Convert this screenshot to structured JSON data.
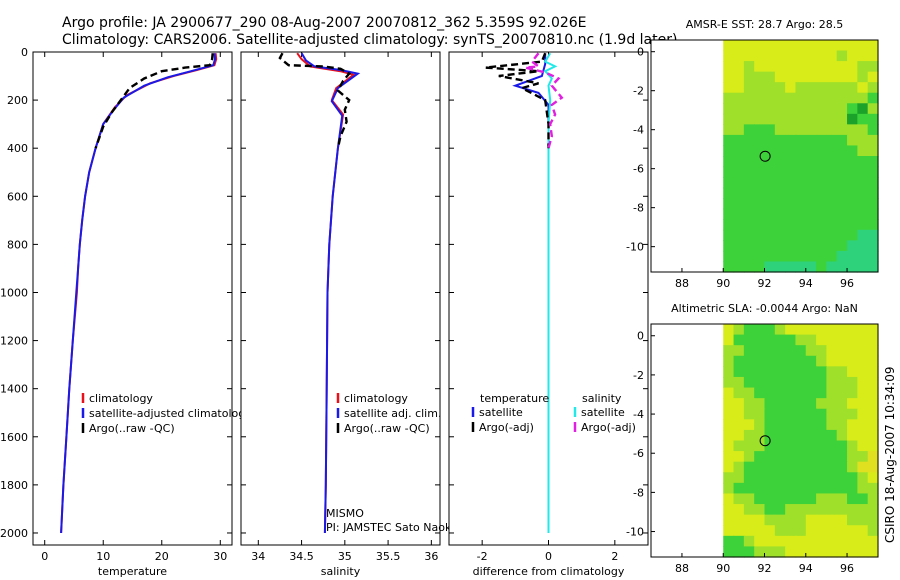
{
  "title_line1": "Argo profile: JA 2900677_290 08-Aug-2007 20070812_362 5.359S 92.026E",
  "title_line2": "Climatology: CARS2006. Satellite-adjusted climatology: synTS_20070810.nc (1.9d later)",
  "side_label": "CSIRO 18-Aug-2007 10:34:09",
  "colors": {
    "red": "#e8101a",
    "blue": "#1a1ae8",
    "black": "#000000",
    "cyan": "#22e8e8",
    "magenta": "#e020e0"
  },
  "chart_data": [
    {
      "id": "temperature",
      "type": "line",
      "xlabel": "temperature",
      "xlim": [
        -2,
        32
      ],
      "ylim": [
        0,
        2050
      ],
      "xticks": [
        0,
        10,
        20,
        30
      ],
      "yticks": [
        0,
        200,
        400,
        600,
        800,
        1000,
        1200,
        1400,
        1600,
        1800,
        2000
      ],
      "legend": [
        "climatology",
        "satellite-adjusted climatolog",
        "Argo(..raw -QC)"
      ],
      "series": [
        {
          "name": "climatology",
          "color": "red",
          "dash": false,
          "points": [
            [
              29.2,
              5
            ],
            [
              29.3,
              30
            ],
            [
              29.0,
              55
            ],
            [
              26,
              75
            ],
            [
              22,
              100
            ],
            [
              18,
              130
            ],
            [
              14,
              180
            ],
            [
              12,
              230
            ],
            [
              10,
              300
            ],
            [
              8.7,
              400
            ],
            [
              7.6,
              500
            ],
            [
              6.9,
              600
            ],
            [
              6.4,
              700
            ],
            [
              6.0,
              800
            ],
            [
              5.7,
              900
            ],
            [
              5.5,
              1000
            ],
            [
              4.8,
              1200
            ],
            [
              4.2,
              1400
            ],
            [
              3.7,
              1600
            ],
            [
              3.2,
              1800
            ],
            [
              2.8,
              2000
            ]
          ]
        },
        {
          "name": "satellite-adjusted climatology",
          "color": "blue",
          "dash": false,
          "points": [
            [
              29.0,
              5
            ],
            [
              29.1,
              30
            ],
            [
              28.8,
              55
            ],
            [
              25,
              80
            ],
            [
              21,
              105
            ],
            [
              17,
              140
            ],
            [
              13.5,
              190
            ],
            [
              11.8,
              240
            ],
            [
              10,
              300
            ],
            [
              8.7,
              400
            ],
            [
              7.6,
              500
            ],
            [
              6.9,
              600
            ],
            [
              6.4,
              700
            ],
            [
              6.0,
              800
            ],
            [
              5.7,
              900
            ],
            [
              5.4,
              1000
            ],
            [
              4.8,
              1200
            ],
            [
              4.2,
              1400
            ],
            [
              3.7,
              1600
            ],
            [
              3.2,
              1800
            ],
            [
              2.8,
              2000
            ]
          ]
        },
        {
          "name": "Argo(..raw -QC)",
          "color": "black",
          "dash": true,
          "points": [
            [
              28.7,
              5
            ],
            [
              28.6,
              30
            ],
            [
              28.2,
              55
            ],
            [
              24,
              65
            ],
            [
              20,
              80
            ],
            [
              17,
              110
            ],
            [
              14.5,
              150
            ],
            [
              13,
              200
            ],
            [
              11.5,
              250
            ],
            [
              10,
              310
            ],
            [
              8.7,
              400
            ]
          ]
        }
      ]
    },
    {
      "id": "salinity",
      "type": "line",
      "xlabel": "salinity",
      "xlim": [
        33.8,
        36.1
      ],
      "ylim": [
        0,
        2050
      ],
      "xticks": [
        34,
        34.5,
        35,
        35.5,
        36
      ],
      "legend": [
        "climatology",
        "satellite adj. clim.",
        "Argo(..raw -QC)"
      ],
      "annotation": [
        "MISMO",
        "PI: JAMSTEC Sato Naoki"
      ],
      "series": [
        {
          "name": "climatology",
          "color": "red",
          "dash": false,
          "points": [
            [
              34.45,
              5
            ],
            [
              34.5,
              30
            ],
            [
              34.6,
              60
            ],
            [
              34.95,
              80
            ],
            [
              35.1,
              95
            ],
            [
              34.9,
              150
            ],
            [
              34.85,
              200
            ],
            [
              34.98,
              260
            ],
            [
              34.92,
              400
            ],
            [
              34.86,
              600
            ],
            [
              34.82,
              800
            ],
            [
              34.8,
              1000
            ],
            [
              34.79,
              1400
            ],
            [
              34.78,
              1800
            ],
            [
              34.77,
              2000
            ]
          ]
        },
        {
          "name": "satellite adj. clim.",
          "color": "blue",
          "dash": false,
          "points": [
            [
              34.5,
              5
            ],
            [
              34.55,
              35
            ],
            [
              34.65,
              60
            ],
            [
              34.95,
              75
            ],
            [
              35.15,
              90
            ],
            [
              34.92,
              150
            ],
            [
              34.85,
              205
            ],
            [
              34.97,
              265
            ],
            [
              34.92,
              400
            ],
            [
              34.86,
              600
            ],
            [
              34.82,
              800
            ],
            [
              34.8,
              1000
            ],
            [
              34.79,
              1400
            ],
            [
              34.78,
              1800
            ],
            [
              34.77,
              2000
            ]
          ]
        },
        {
          "name": "Argo(..raw -QC)",
          "color": "black",
          "dash": true,
          "points": [
            [
              34.28,
              5
            ],
            [
              34.25,
              25
            ],
            [
              34.35,
              55
            ],
            [
              34.75,
              60
            ],
            [
              34.95,
              70
            ],
            [
              35.05,
              90
            ],
            [
              34.98,
              120
            ],
            [
              34.92,
              160
            ],
            [
              35.05,
              200
            ],
            [
              35.0,
              240
            ],
            [
              35.02,
              290
            ],
            [
              34.95,
              350
            ],
            [
              34.92,
              400
            ]
          ]
        }
      ]
    },
    {
      "id": "difference",
      "type": "line",
      "xlabel": "difference from climatology",
      "xlim": [
        -3,
        3
      ],
      "ylim": [
        0,
        2050
      ],
      "xticks": [
        -2,
        0,
        2
      ],
      "legend_headers": [
        "temperature",
        "salinity"
      ],
      "legend": [
        "satellite",
        "Argo(-adj)",
        "satellite",
        "Argo(-adj)"
      ],
      "series": [
        {
          "name": "temperature satellite",
          "color": "blue",
          "dash": false,
          "points": [
            [
              -0.1,
              5
            ],
            [
              -0.1,
              50
            ],
            [
              -0.2,
              100
            ],
            [
              -1.0,
              140
            ],
            [
              -0.3,
              170
            ],
            [
              0.0,
              220
            ],
            [
              0.0,
              300
            ],
            [
              0.0,
              400
            ],
            [
              0.0,
              500
            ]
          ]
        },
        {
          "name": "salinity satellite",
          "color": "cyan",
          "dash": false,
          "points": [
            [
              0.05,
              5
            ],
            [
              -0.1,
              40
            ],
            [
              0.2,
              60
            ],
            [
              -0.1,
              80
            ],
            [
              0.1,
              110
            ],
            [
              0.0,
              140
            ],
            [
              0.05,
              200
            ],
            [
              0.0,
              300
            ],
            [
              0.0,
              500
            ],
            [
              0.0,
              1000
            ],
            [
              0.0,
              1500
            ],
            [
              0.0,
              2000
            ]
          ]
        },
        {
          "name": "temperature Argo(-adj)",
          "color": "black",
          "dash": true,
          "points": [
            [
              -0.1,
              5
            ],
            [
              -0.2,
              40
            ],
            [
              -1.9,
              65
            ],
            [
              -0.3,
              80
            ],
            [
              -1.5,
              100
            ],
            [
              -0.3,
              130
            ],
            [
              -0.8,
              150
            ],
            [
              -0.1,
              200
            ],
            [
              0.0,
              300
            ],
            [
              0.0,
              400
            ]
          ]
        },
        {
          "name": "salinity Argo(-adj)",
          "color": "magenta",
          "dash": true,
          "points": [
            [
              -0.3,
              5
            ],
            [
              -0.5,
              40
            ],
            [
              -0.3,
              60
            ],
            [
              -0.7,
              65
            ],
            [
              -0.1,
              85
            ],
            [
              0.3,
              110
            ],
            [
              0.1,
              140
            ],
            [
              0.4,
              190
            ],
            [
              0.1,
              220
            ],
            [
              0.2,
              260
            ],
            [
              0.05,
              300
            ],
            [
              0.1,
              350
            ],
            [
              0.0,
              400
            ]
          ]
        }
      ]
    },
    {
      "id": "sst_map",
      "type": "heatmap",
      "title": "AMSR-E SST: 28.7 Argo: 28.5",
      "xlim": [
        86.5,
        97.5
      ],
      "ylim": [
        -11.3,
        0.6
      ],
      "xticks": [
        88,
        90,
        92,
        94,
        96
      ],
      "yticks": [
        0,
        -2,
        -4,
        -6,
        -8,
        -10
      ],
      "data_xrange": [
        90,
        97.5
      ],
      "marker": [
        92.03,
        -5.36
      ],
      "grid": [
        "yyyyyyyyyyyyyyy",
        "yyyyyyyyyyylyyy",
        "yylyyyyyyyyyyll",
        "yylllyyyyyyyyly",
        "yyllllyllllllyl",
        "llllllllllllllg",
        "llllllllllllgdl",
        "lllllllllllldgg",
        "llggglllllllllg",
        "gggggggggggglll",
        "gggggggggggggll",
        "ggggggggggggggg",
        "ggggggggggggggg",
        "ggggggggggggggg",
        "ggggggggggggggg",
        "ggggggggggggggg",
        "ggggggggggggggg",
        "ggggggggggggggg",
        "gggggggggggggtt",
        "ggggggggggggttt",
        "gggggggggggtttt",
        "ggggtttttgttttt"
      ]
    },
    {
      "id": "sla_map",
      "type": "heatmap",
      "title": "Altimetric SLA: -0.0044 Argo: NaN",
      "xlim": [
        86.5,
        97.5
      ],
      "ylim": [
        -11.3,
        0.6
      ],
      "xticks": [
        88,
        90,
        92,
        94,
        96
      ],
      "yticks": [
        0,
        -2,
        -4,
        -6,
        -8,
        -10
      ],
      "data_xrange": [
        90,
        97.5
      ],
      "marker": [
        92.03,
        -5.36
      ],
      "grid": [
        "ylggglyyyyyyyyy",
        "yggggggllyyyyyy",
        "llggggggllyyyyy",
        "lgggggggglyyyyy",
        "lgggggggggllyyy",
        "llgggggggglllyy",
        "yllggggggglllyy",
        "yyllggggglllyyy",
        "yyllgggggglllyy",
        "yyylggggggllyyy",
        "yyllggggggglyyy",
        "ylllgggggggglyy",
        "yylgggggggggllo",
        "ylggggggggggloo",
        "llgggggggggggly",
        "lggggggggggggll",
        "yllgggggglllggl",
        "yyllgglllllllll",
        "yyyyllllyyyylll",
        "yyyyylllyyyyyyl",
        "gglyyyyyyyyyyyy",
        "ggglllyyyyyyyyy"
      ]
    }
  ]
}
